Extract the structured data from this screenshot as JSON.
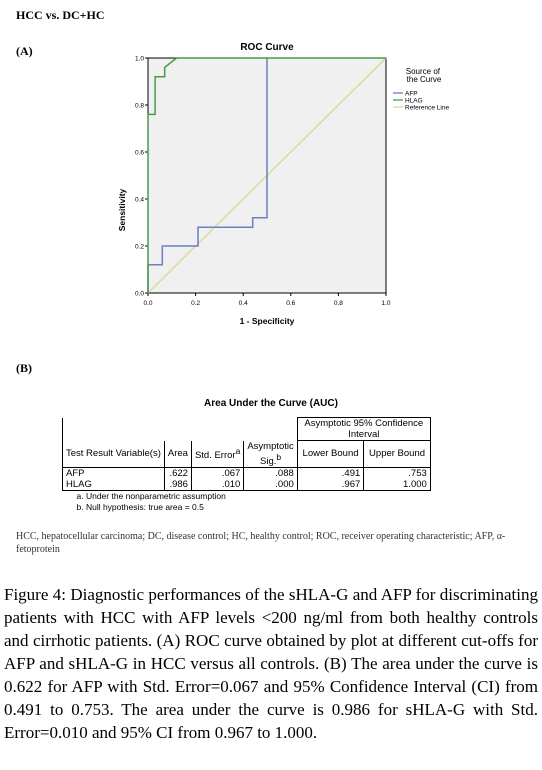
{
  "heading": "HCC vs. DC+HC",
  "panel_a_label": "(A)",
  "panel_b_label": "(B)",
  "chart_data": {
    "type": "line",
    "title": "ROC Curve",
    "xlabel": "1 - Specificity",
    "ylabel": "Sensitivity",
    "xlim": [
      0,
      1
    ],
    "ylim": [
      0,
      1
    ],
    "xticks": [
      "0.0",
      "0.2",
      "0.4",
      "0.6",
      "0.8",
      "1.0"
    ],
    "yticks": [
      "0.0",
      "0.2",
      "0.4",
      "0.6",
      "0.8",
      "1.0"
    ],
    "grid": false,
    "legend_title": "Source of the Curve",
    "legend_position": "right",
    "series": [
      {
        "name": "AFP",
        "color": "#6b7fc4",
        "x": [
          0,
          0,
          0.06,
          0.06,
          0.21,
          0.21,
          0.44,
          0.44,
          0.5,
          0.5
        ],
        "y": [
          0,
          0.12,
          0.12,
          0.2,
          0.2,
          0.28,
          0.28,
          0.32,
          0.32,
          1.0
        ]
      },
      {
        "name": "HLAG",
        "color": "#4a9a4a",
        "x": [
          0,
          0,
          0.03,
          0.03,
          0.07,
          0.07,
          0.12,
          1.0
        ],
        "y": [
          0,
          0.76,
          0.76,
          0.92,
          0.92,
          0.96,
          1.0,
          1.0
        ]
      },
      {
        "name": "Reference Line",
        "color": "#d9d9a0",
        "x": [
          0,
          1
        ],
        "y": [
          0,
          1
        ]
      }
    ]
  },
  "auc": {
    "title": "Area Under the Curve (AUC)",
    "col_test_variable": "Test Result Variable(s)",
    "col_area": "Area",
    "col_std_error": "Std. Error",
    "col_std_error_sup": "a",
    "col_asymptotic": "Asymptotic",
    "col_sig": "Sig.",
    "col_sig_sup": "b",
    "col_ci": "Asymptotic 95% Confidence Interval",
    "col_lower": "Lower Bound",
    "col_upper": "Upper Bound",
    "rows": [
      {
        "variable": "AFP",
        "area": ".622",
        "std_error": ".067",
        "sig": ".088",
        "lower": ".491",
        "upper": ".753"
      },
      {
        "variable": "HLAG",
        "area": ".986",
        "std_error": ".010",
        "sig": ".000",
        "lower": ".967",
        "upper": "1.000"
      }
    ],
    "footnote_a": "a. Under the nonparametric assumption",
    "footnote_b": "b. Null hypothesis: true area = 0.5"
  },
  "abbreviations": "HCC, hepatocellular carcinoma; DC, disease control; HC, healthy control; ROC, receiver operating characteristic; AFP, α-fetoprotein",
  "caption": {
    "label": "Figure 4:",
    "text": "Diagnostic performances of the sHLA-G and AFP for discriminating patients with HCC with AFP levels <200 ng/ml from both healthy controls and cirrhotic patients. (A) ROC curve obtained by plot at different cut-offs for AFP and sHLA-G in HCC versus all controls. (B) The area under the curve is 0.622 for AFP with Std. Error=0.067 and 95% Confidence Interval (CI) from 0.491 to 0.753. The area under the curve is 0.986 for sHLA-G with Std. Error=0.010 and 95% CI from 0.967 to 1.000."
  }
}
